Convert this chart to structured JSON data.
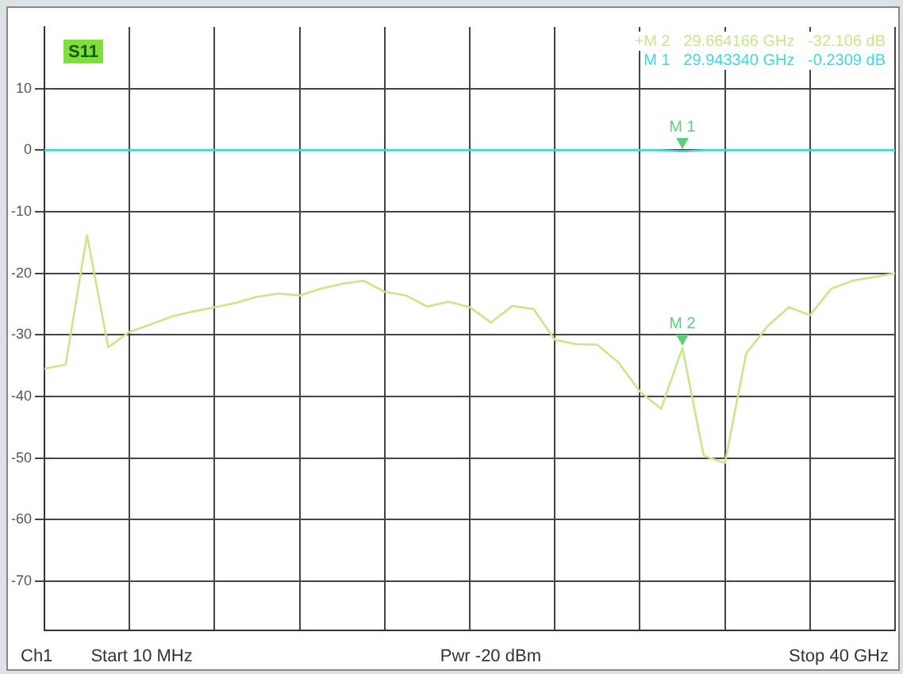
{
  "chart_data": {
    "type": "line",
    "title": "S11",
    "subtitle": "+M 2   29.664166 GHz   -32.106 dB\nM 1   29.943340 GHz   -0.2309 dB",
    "categories": [
      null,
      null,
      null,
      null,
      null,
      null,
      null,
      null,
      null,
      null,
      null,
      null,
      null,
      null,
      null,
      null,
      null,
      null,
      null,
      null,
      null,
      null,
      null,
      null,
      null,
      null,
      null,
      null,
      null,
      null,
      null,
      null,
      null,
      null,
      null,
      null,
      null,
      null,
      null,
      null,
      null
    ],
    "ylim": [
      -78,
      20
    ],
    "yticks": [
      10,
      0,
      -10,
      -20,
      -30,
      -40,
      -50,
      -60,
      -70
    ],
    "grid": true,
    "tick_labels": "y",
    "legend": false,
    "marker": "none",
    "line_style": "solid",
    "series": [
      {
        "color": "#40d8e0",
        "values": [
          0,
          0,
          0,
          0,
          0,
          0,
          0,
          0,
          0,
          0,
          0,
          0,
          0,
          0,
          0,
          0,
          0,
          0,
          0,
          0,
          0,
          0,
          0,
          0,
          0,
          0,
          0,
          0,
          0,
          0,
          -0.2,
          0,
          0,
          0,
          0,
          0,
          0,
          0,
          0,
          0,
          0
        ]
      },
      {
        "color": "#c8e68a",
        "values": [
          -35.5,
          -34.8,
          -13.8,
          -32,
          -29.5,
          -28.3,
          -27,
          -26.2,
          -25.5,
          -24.8,
          -23.8,
          -23.3,
          -23.6,
          -22.5,
          -21.7,
          -21.2,
          -23,
          -23.6,
          -25.4,
          -24.6,
          -25.5,
          -28,
          -25.3,
          -25.8,
          -30.8,
          -31.5,
          -31.6,
          -34.5,
          -39.2,
          -42,
          -32.1,
          -49.6,
          -50.8,
          -33,
          -28.6,
          -25.5,
          -26.8,
          -22.5,
          -21.2,
          -20.6,
          -20
        ]
      }
    ],
    "annotations": [
      {
        "text": "M 1",
        "y": -0.2
      },
      {
        "text": "M 2",
        "y": -32.1
      },
      "Ch1",
      "Start 10 MHz",
      "Pwr -20 dBm",
      "Stop 40 GHz"
    ]
  }
}
